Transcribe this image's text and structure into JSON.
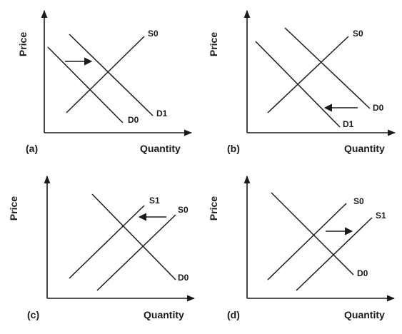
{
  "panels": [
    {
      "id": "a",
      "panel_label": "(a)",
      "y_axis_label": "Price",
      "x_axis_label": "Quantity",
      "curves": [
        {
          "label": "S0",
          "type": "supply"
        },
        {
          "label": "D0",
          "type": "demand"
        },
        {
          "label": "D1",
          "type": "demand"
        }
      ],
      "shift": {
        "curve": "demand",
        "direction": "right"
      }
    },
    {
      "id": "b",
      "panel_label": "(b)",
      "y_axis_label": "Price",
      "x_axis_label": "Quantity",
      "curves": [
        {
          "label": "S0",
          "type": "supply"
        },
        {
          "label": "D0",
          "type": "demand"
        },
        {
          "label": "D1",
          "type": "demand"
        }
      ],
      "shift": {
        "curve": "demand",
        "direction": "left"
      }
    },
    {
      "id": "c",
      "panel_label": "(c)",
      "y_axis_label": "Price",
      "x_axis_label": "Quantity",
      "curves": [
        {
          "label": "S1",
          "type": "supply"
        },
        {
          "label": "S0",
          "type": "supply"
        },
        {
          "label": "D0",
          "type": "demand"
        }
      ],
      "shift": {
        "curve": "supply",
        "direction": "left"
      }
    },
    {
      "id": "d",
      "panel_label": "(d)",
      "y_axis_label": "Price",
      "x_axis_label": "Quantity",
      "curves": [
        {
          "label": "S0",
          "type": "supply"
        },
        {
          "label": "S1",
          "type": "supply"
        },
        {
          "label": "D0",
          "type": "demand"
        }
      ],
      "shift": {
        "curve": "supply",
        "direction": "right"
      }
    }
  ],
  "colors": {
    "ink": "#1a1a1a",
    "background": "#ffffff"
  }
}
